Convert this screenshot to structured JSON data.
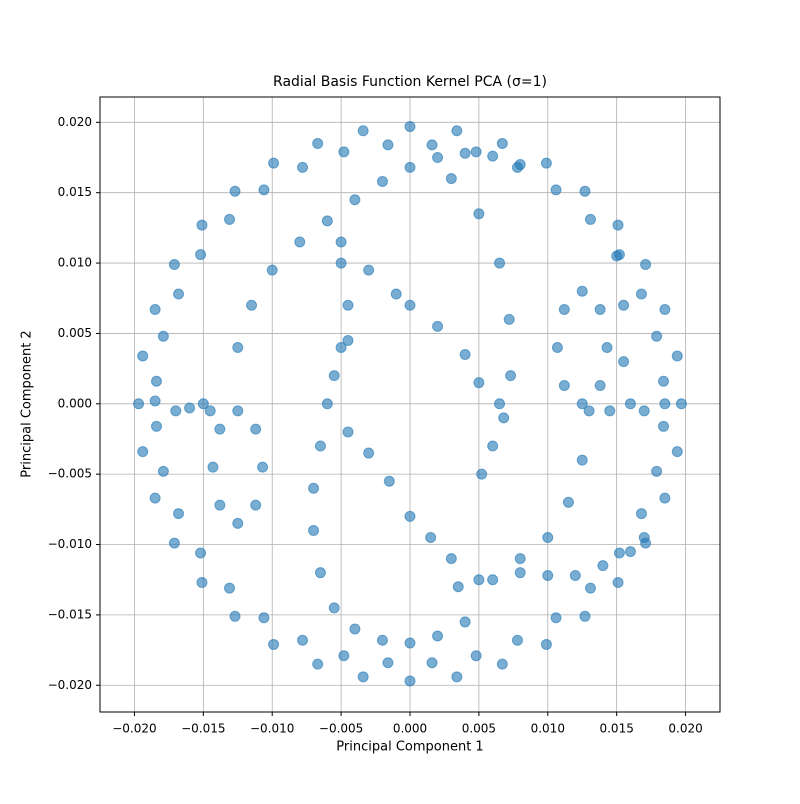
{
  "chart_data": {
    "type": "scatter",
    "title": "Radial Basis Function Kernel PCA (σ=1)",
    "x_label": "Principal Component 1",
    "y_label": "Principal Component 2",
    "color": "#1f77b4",
    "alpha": 0.6,
    "grid": true,
    "xlim": [
      -0.0225,
      0.0225
    ],
    "ylim": [
      -0.0219,
      0.0218
    ],
    "xticks": [
      {
        "value": -0.02,
        "label": "−0.020"
      },
      {
        "value": -0.015,
        "label": "−0.015"
      },
      {
        "value": -0.01,
        "label": "−0.010"
      },
      {
        "value": -0.005,
        "label": "−0.005"
      },
      {
        "value": 0,
        "label": "0.000"
      },
      {
        "value": 0.005,
        "label": "0.005"
      },
      {
        "value": 0.01,
        "label": "0.010"
      },
      {
        "value": 0.015,
        "label": "0.015"
      },
      {
        "value": 0.02,
        "label": "0.020"
      }
    ],
    "yticks": [
      {
        "value": -0.02,
        "label": "−0.020"
      },
      {
        "value": -0.015,
        "label": "−0.015"
      },
      {
        "value": -0.01,
        "label": "−0.010"
      },
      {
        "value": -0.005,
        "label": "−0.005"
      },
      {
        "value": 0,
        "label": "0.000"
      },
      {
        "value": 0.005,
        "label": "0.005"
      },
      {
        "value": 0.01,
        "label": "0.010"
      },
      {
        "value": 0.015,
        "label": "0.015"
      },
      {
        "value": 0.02,
        "label": "0.020"
      }
    ],
    "x": [
      0.0197,
      0.0194,
      0.0185,
      0.0171,
      0.0151,
      0.0127,
      0.0099,
      0.0067,
      0.0034,
      0,
      -0.0034,
      -0.0067,
      -0.0099,
      -0.0127,
      -0.0151,
      -0.0171,
      -0.0185,
      -0.0194,
      -0.0197,
      -0.0194,
      -0.0185,
      -0.0171,
      -0.0151,
      -0.0127,
      -0.0099,
      -0.0067,
      -0.0034,
      0,
      0.0034,
      0.0067,
      0.0099,
      0.0127,
      0.0151,
      0.0171,
      0.0185,
      0.0194,
      0.0184,
      0.0179,
      0.0168,
      0.0152,
      0.0131,
      0.0106,
      0.0078,
      0.0048,
      0.0016,
      -0.0016,
      -0.0048,
      -0.0078,
      -0.0106,
      -0.0131,
      -0.0152,
      -0.0168,
      -0.0179,
      -0.0184,
      -0.0184,
      -0.0179,
      -0.0168,
      -0.0152,
      -0.0131,
      -0.0106,
      -0.0078,
      -0.0048,
      -0.0016,
      0.0016,
      0.0048,
      0.0078,
      0.0106,
      0.0131,
      0.0152,
      0.0168,
      0.0179,
      0.0184,
      -0.0185,
      -0.017,
      -0.016,
      -0.015,
      -0.0145,
      -0.0107,
      -0.0112,
      -0.0125,
      -0.0138,
      -0.0143,
      -0.0138,
      -0.0125,
      -0.0112,
      -0.0125,
      -0.0115,
      -0.01,
      -0.008,
      -0.006,
      -0.004,
      -0.002,
      0,
      0.002,
      0.004,
      0.006,
      0.008,
      0.003,
      0.005,
      0.0065,
      0.0072,
      0.0073,
      0.0068,
      0.006,
      0.0052,
      -0.005,
      -0.0055,
      -0.006,
      -0.0065,
      -0.007,
      -0.007,
      -0.0065,
      -0.0055,
      -0.004,
      -0.002,
      0,
      0.002,
      0.004,
      -0.005,
      -0.003,
      -0.001,
      0,
      0.002,
      0.004,
      0.005,
      0.0065,
      -0.005,
      -0.0045,
      -0.0045,
      -0.0045,
      -0.003,
      -0.0015,
      0,
      0.0015,
      0.003,
      0.0035,
      0.005,
      0.006,
      0.008,
      0.01,
      0.012,
      0.014,
      0.016,
      0.017,
      0.0185,
      0.017,
      0.016,
      0.0145,
      0.013,
      0.0143,
      0.0138,
      0.0125,
      0.0112,
      0.0107,
      0.0112,
      0.0125,
      0.0138,
      0.0125,
      0.0115,
      0.01,
      0.008,
      0.015,
      0.0155,
      0.0155
    ],
    "values": [
      0,
      0.0034,
      0.0067,
      0.0099,
      0.0127,
      0.0151,
      0.0171,
      0.0185,
      0.0194,
      0.0197,
      0.0194,
      0.0185,
      0.0171,
      0.0151,
      0.0127,
      0.0099,
      0.0067,
      0.0034,
      0,
      -0.0034,
      -0.0067,
      -0.0099,
      -0.0127,
      -0.0151,
      -0.0171,
      -0.0185,
      -0.0194,
      -0.0197,
      -0.0194,
      -0.0185,
      -0.0171,
      -0.0151,
      -0.0127,
      -0.0099,
      -0.0067,
      -0.0034,
      0.0016,
      0.0048,
      0.0078,
      0.0106,
      0.0131,
      0.0152,
      0.0168,
      0.0179,
      0.0184,
      0.0184,
      0.0179,
      0.0168,
      0.0152,
      0.0131,
      0.0106,
      0.0078,
      0.0048,
      0.0016,
      -0.0016,
      -0.0048,
      -0.0078,
      -0.0106,
      -0.0131,
      -0.0152,
      -0.0168,
      -0.0179,
      -0.0184,
      -0.0184,
      -0.0179,
      -0.0168,
      -0.0152,
      -0.0131,
      -0.0106,
      -0.0078,
      -0.0048,
      -0.0016,
      0.0002,
      -0.0005,
      -0.0003,
      0,
      -0.0005,
      -0.0045,
      -0.0018,
      -0.0005,
      -0.0018,
      -0.0045,
      -0.0072,
      -0.0085,
      -0.0072,
      0.004,
      0.007,
      0.0095,
      0.0115,
      0.013,
      0.0145,
      0.0158,
      0.0168,
      0.0175,
      0.0178,
      0.0176,
      0.017,
      0.016,
      0.0135,
      0.01,
      0.006,
      0.002,
      -0.001,
      -0.003,
      -0.005,
      0.004,
      0.002,
      0,
      -0.003,
      -0.006,
      -0.009,
      -0.012,
      -0.0145,
      -0.016,
      -0.0168,
      -0.017,
      -0.0165,
      -0.0155,
      0.0115,
      0.0095,
      0.0078,
      0.007,
      0.0055,
      0.0035,
      0.0015,
      0,
      0.01,
      0.007,
      0.0045,
      -0.002,
      -0.0035,
      -0.0055,
      -0.008,
      -0.0095,
      -0.011,
      -0.013,
      -0.0125,
      -0.0125,
      -0.012,
      -0.0122,
      -0.0122,
      -0.0115,
      -0.0105,
      -0.0095,
      0,
      -0.0005,
      0,
      -0.0005,
      -0.0005,
      0.004,
      0.0067,
      0.008,
      0.0067,
      0.004,
      0.0013,
      0,
      0.0013,
      -0.004,
      -0.007,
      -0.0095,
      -0.011,
      0.0105,
      0.007,
      0.003
    ]
  }
}
